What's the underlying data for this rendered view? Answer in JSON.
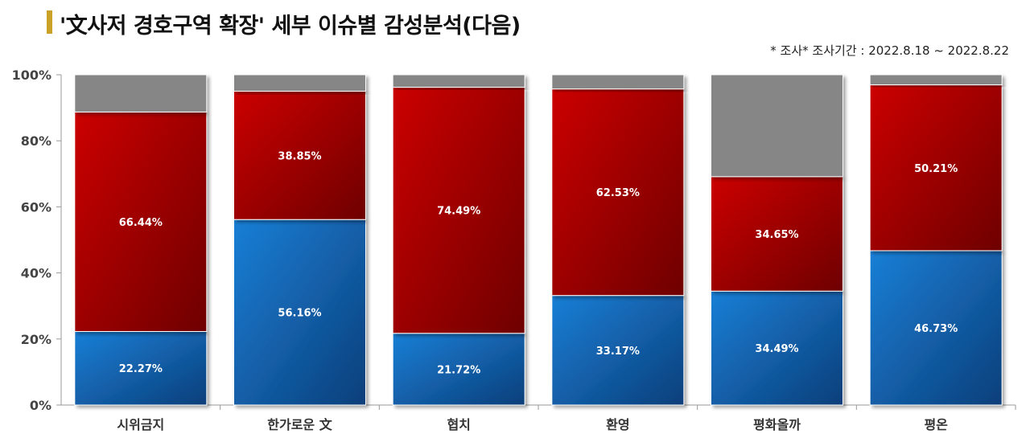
{
  "title": "'文사저 경호구역 확장' 세부 이슈별 감성분석(다음)",
  "subtitle": "* 조사* 조사기간 : 2022.8.18 ~ 2022.8.22",
  "colors": {
    "title_bar": "#c9a227",
    "positive": "#0a63b8",
    "negative": "#b30000",
    "neutral": "#868686"
  },
  "chart_data": {
    "type": "bar",
    "stacked": true,
    "categories": [
      "시위금지",
      "한가로운 文",
      "협치",
      "환영",
      "평화올까",
      "평온"
    ],
    "series": [
      {
        "values": [
          22.27,
          56.16,
          21.72,
          33.17,
          34.49,
          46.73
        ],
        "labels": [
          "22.27%",
          "56.16%",
          "21.72%",
          "33.17%",
          "34.49%",
          "46.73%"
        ],
        "color": "#0a63b8"
      },
      {
        "values": [
          66.44,
          38.85,
          74.49,
          62.53,
          34.65,
          50.21
        ],
        "labels": [
          "66.44%",
          "38.85%",
          "74.49%",
          "62.53%",
          "34.65%",
          "50.21%"
        ],
        "color": "#b30000"
      },
      {
        "values": [
          11.29,
          4.99,
          3.79,
          4.3,
          30.86,
          3.06
        ],
        "color": "#868686"
      }
    ],
    "ylim": [
      0,
      100
    ],
    "yticks": [
      "0%",
      "20%",
      "40%",
      "60%",
      "80%",
      "100%"
    ],
    "grid": false,
    "legend": "none"
  }
}
